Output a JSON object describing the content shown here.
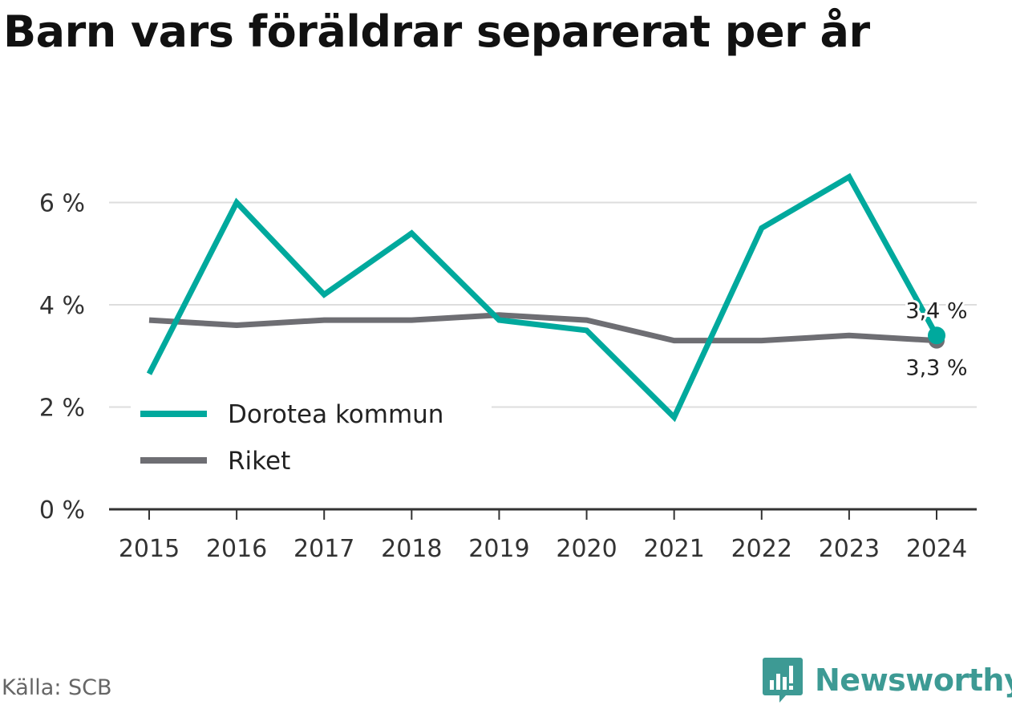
{
  "title": "Barn vars föräldrar separerat per år",
  "source": "Källa: SCB",
  "brand": {
    "name": "Newsworthy",
    "icon": "newsworthy-logo-icon",
    "color": "#3d9a94"
  },
  "chart_data": {
    "type": "line",
    "title": "Barn vars föräldrar separerat per år",
    "x": [
      "2015",
      "2016",
      "2017",
      "2018",
      "2019",
      "2020",
      "2021",
      "2022",
      "2023",
      "2024"
    ],
    "series": [
      {
        "name": "Dorotea kommun",
        "color": "#00a99d",
        "values": [
          2.65,
          6.0,
          4.2,
          5.4,
          3.7,
          3.5,
          1.8,
          5.5,
          6.5,
          3.4
        ]
      },
      {
        "name": "Riket",
        "color": "#6e6e73",
        "values": [
          3.7,
          3.6,
          3.7,
          3.7,
          3.8,
          3.7,
          3.3,
          3.3,
          3.4,
          3.3
        ]
      }
    ],
    "yticks": [
      0,
      2,
      4,
      6
    ],
    "ytick_labels": [
      "0 %",
      "2 %",
      "4 %",
      "6 %"
    ],
    "ylim": [
      0,
      6.5
    ],
    "end_labels": [
      "3,4 %",
      "3,3 %"
    ],
    "grid": true,
    "legend_position": "bottom-left"
  }
}
